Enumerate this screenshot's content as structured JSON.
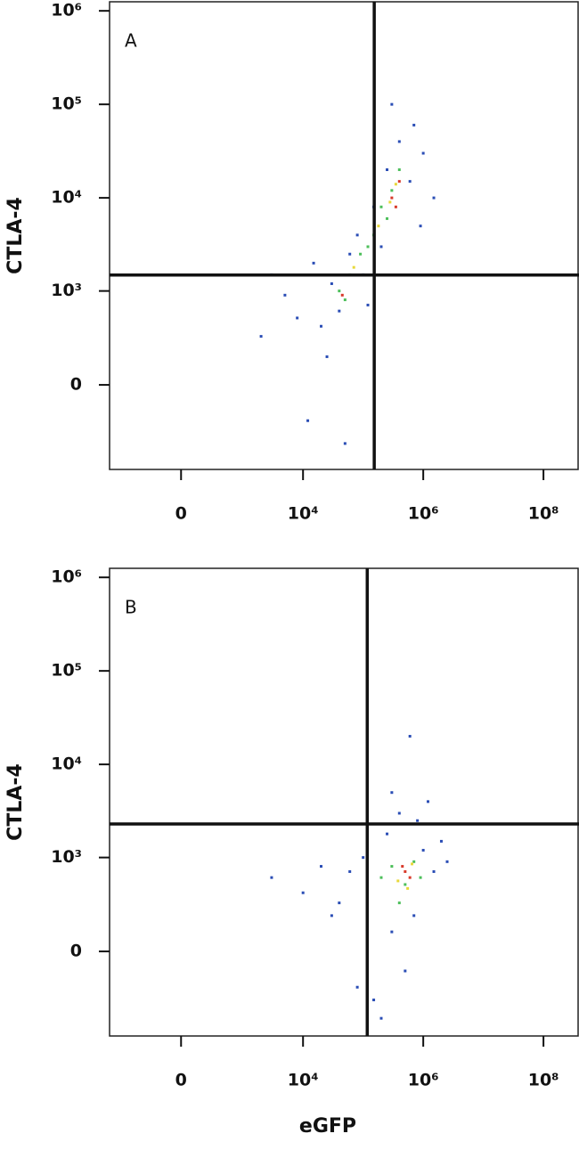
{
  "chart_data": [
    {
      "type": "scatter",
      "panel_label": "A",
      "ylabel": "CTLA-4",
      "xscale": "biexponential",
      "yscale": "biexponential",
      "xlim": [
        -1440,
        390000000
      ],
      "ylim": [
        -790,
        1250000
      ],
      "xticks": [
        0,
        {
          "value": 10000,
          "label": "10⁴"
        },
        {
          "value": 1000000,
          "label": "10⁶"
        },
        {
          "value": 100000000,
          "label": "10⁸"
        }
      ],
      "yticks": [
        0,
        {
          "value": 1000,
          "label": "10³"
        },
        {
          "value": 10000,
          "label": "10⁴"
        },
        {
          "value": 100000,
          "label": "10⁵"
        },
        {
          "value": 1000000,
          "label": "10⁶"
        }
      ],
      "gates": {
        "x": 153000,
        "y": 1490
      },
      "series": [
        {
          "color": "#2a4db5",
          "x": [
            2000,
            5000,
            8000,
            12000,
            20000,
            30000,
            40000,
            60000,
            80000,
            100000,
            150000,
            200000,
            250000,
            400000,
            600000,
            700000,
            1000000,
            1500000,
            300000,
            50000,
            25000,
            3000,
            15000,
            120000,
            900000
          ],
          "values": [
            300,
            900,
            500,
            -200,
            400,
            1200,
            600,
            2500,
            4000,
            1500,
            8000,
            3000,
            20000,
            40000,
            15000,
            60000,
            30000,
            10000,
            100000,
            -400,
            150,
            1500,
            2000,
            700,
            5000
          ]
        },
        {
          "color": "#4cbf5a",
          "x": [
            40000,
            60000,
            50000,
            90000,
            150000,
            200000,
            300000,
            400000,
            250000,
            120000
          ],
          "values": [
            1000,
            1500,
            800,
            2500,
            4000,
            8000,
            12000,
            20000,
            6000,
            3000
          ]
        },
        {
          "color": "#e8d83a",
          "x": [
            70000,
            180000,
            280000,
            350000
          ],
          "values": [
            1800,
            5000,
            9000,
            14000
          ]
        },
        {
          "color": "#d83a2a",
          "x": [
            300000,
            400000,
            350000,
            45000
          ],
          "values": [
            10000,
            15000,
            8000,
            900
          ]
        }
      ]
    },
    {
      "type": "scatter",
      "panel_label": "B",
      "ylabel": "CTLA-4",
      "xlabel": "eGFP",
      "xscale": "biexponential",
      "yscale": "biexponential",
      "xlim": [
        -1440,
        390000000
      ],
      "ylim": [
        -790,
        1250000
      ],
      "xticks": [
        0,
        {
          "value": 10000,
          "label": "10⁴"
        },
        {
          "value": 1000000,
          "label": "10⁶"
        },
        {
          "value": 100000000,
          "label": "10⁸"
        }
      ],
      "yticks": [
        0,
        {
          "value": 1000,
          "label": "10³"
        },
        {
          "value": 10000,
          "label": "10⁴"
        },
        {
          "value": 100000,
          "label": "10⁵"
        },
        {
          "value": 1000000,
          "label": "10⁶"
        }
      ],
      "gates": {
        "x": 117000,
        "y": 2300
      },
      "series": [
        {
          "color": "#2a4db5",
          "x": [
            3000,
            10000,
            20000,
            40000,
            60000,
            80000,
            150000,
            200000,
            300000,
            500000,
            700000,
            1000000,
            1500000,
            2000000,
            2500000,
            400000,
            800000,
            600000,
            300000,
            1200000,
            30000,
            100000,
            250000
          ],
          "values": [
            600,
            400,
            800,
            300,
            700,
            -200,
            -300,
            -500,
            100,
            -100,
            200,
            1200,
            700,
            1500,
            900,
            3000,
            2500,
            20000,
            5000,
            4000,
            200,
            1000,
            1800
          ]
        },
        {
          "color": "#4cbf5a",
          "x": [
            300000,
            500000,
            700000,
            400000,
            900000,
            200000
          ],
          "values": [
            800,
            500,
            900,
            300,
            600,
            600
          ]
        },
        {
          "color": "#e8d83a",
          "x": [
            380000,
            650000,
            550000
          ],
          "values": [
            550,
            850,
            450
          ]
        },
        {
          "color": "#d83a2a",
          "x": [
            500000,
            600000,
            450000
          ],
          "values": [
            700,
            600,
            800
          ]
        }
      ]
    }
  ]
}
